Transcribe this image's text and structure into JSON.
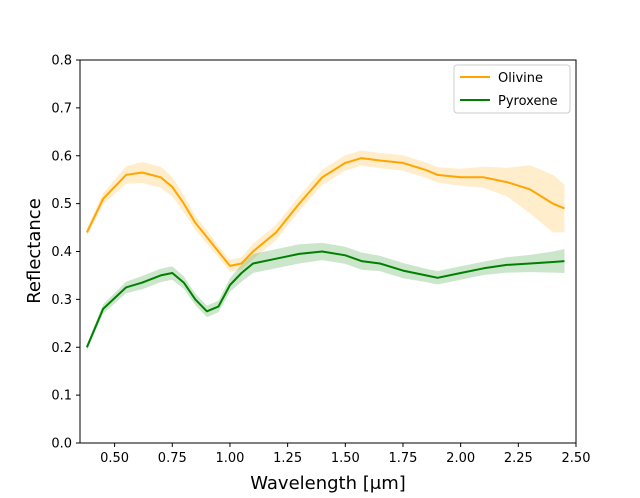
{
  "chart_data": {
    "type": "line",
    "title": "",
    "xlabel": "Wavelength [μm]",
    "ylabel": "Reflectance",
    "xlim": [
      0.35,
      2.5
    ],
    "ylim": [
      0.0,
      0.8
    ],
    "xticks": [
      0.5,
      0.75,
      1.0,
      1.25,
      1.5,
      1.75,
      2.0,
      2.25,
      2.5
    ],
    "xtick_labels": [
      "0.50",
      "0.75",
      "1.00",
      "1.25",
      "1.50",
      "1.75",
      "2.00",
      "2.25",
      "2.50"
    ],
    "yticks": [
      0.0,
      0.1,
      0.2,
      0.3,
      0.4,
      0.5,
      0.6,
      0.7,
      0.8
    ],
    "ytick_labels": [
      "0.0",
      "0.1",
      "0.2",
      "0.3",
      "0.4",
      "0.5",
      "0.6",
      "0.7",
      "0.8"
    ],
    "grid": false,
    "legend_position": "top-right",
    "x": [
      0.38,
      0.45,
      0.55,
      0.62,
      0.7,
      0.75,
      0.8,
      0.85,
      0.9,
      0.95,
      1.0,
      1.05,
      1.1,
      1.2,
      1.3,
      1.4,
      1.5,
      1.57,
      1.65,
      1.75,
      1.85,
      1.9,
      2.0,
      2.1,
      2.2,
      2.3,
      2.4,
      2.45
    ],
    "series": [
      {
        "name": "Olivine",
        "color": "#ffa500",
        "values": [
          0.44,
          0.51,
          0.56,
          0.565,
          0.555,
          0.535,
          0.5,
          0.46,
          0.43,
          0.4,
          0.37,
          0.375,
          0.4,
          0.44,
          0.5,
          0.555,
          0.585,
          0.595,
          0.59,
          0.585,
          0.57,
          0.56,
          0.555,
          0.555,
          0.545,
          0.53,
          0.5,
          0.49
        ],
        "band_width": [
          0.008,
          0.012,
          0.018,
          0.022,
          0.022,
          0.02,
          0.018,
          0.015,
          0.014,
          0.012,
          0.012,
          0.013,
          0.016,
          0.016,
          0.016,
          0.016,
          0.016,
          0.016,
          0.016,
          0.016,
          0.016,
          0.016,
          0.018,
          0.022,
          0.03,
          0.05,
          0.06,
          0.05
        ]
      },
      {
        "name": "Pyroxene",
        "color": "#008000",
        "values": [
          0.2,
          0.28,
          0.325,
          0.335,
          0.35,
          0.355,
          0.335,
          0.3,
          0.275,
          0.285,
          0.33,
          0.355,
          0.375,
          0.385,
          0.395,
          0.4,
          0.392,
          0.38,
          0.375,
          0.36,
          0.35,
          0.345,
          0.355,
          0.365,
          0.372,
          0.375,
          0.378,
          0.38
        ],
        "band_width": [
          0.006,
          0.01,
          0.012,
          0.014,
          0.014,
          0.014,
          0.013,
          0.012,
          0.012,
          0.012,
          0.014,
          0.018,
          0.02,
          0.02,
          0.02,
          0.018,
          0.018,
          0.018,
          0.016,
          0.016,
          0.014,
          0.014,
          0.014,
          0.014,
          0.016,
          0.018,
          0.022,
          0.025
        ]
      }
    ]
  }
}
